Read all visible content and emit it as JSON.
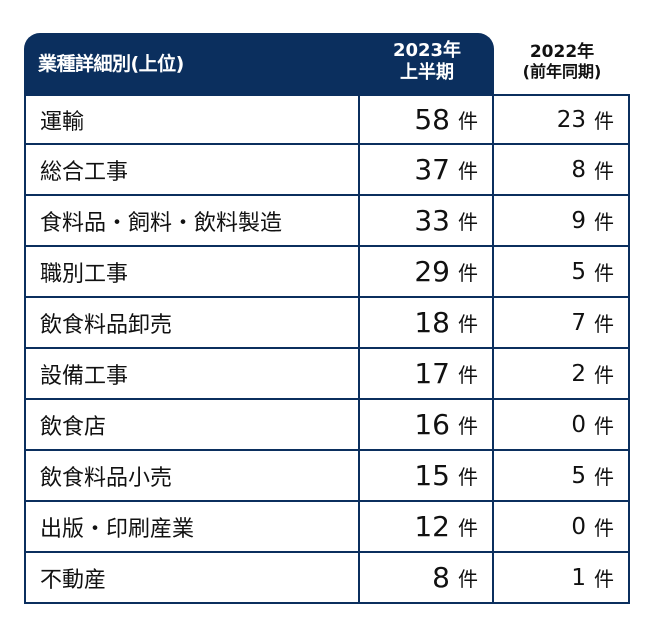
{
  "header": {
    "category": "業種詳細別(上位)",
    "col2_line1": "2023年",
    "col2_line2": "上半期",
    "col3_line1": "2022年",
    "col3_line2": "(前年同期)"
  },
  "unit": "件",
  "rows": [
    {
      "name": "運輸",
      "h1_2023": "58",
      "prev_2022": "23"
    },
    {
      "name": "総合工事",
      "h1_2023": "37",
      "prev_2022": "8"
    },
    {
      "name": "食料品・飼料・飲料製造",
      "h1_2023": "33",
      "prev_2022": "9"
    },
    {
      "name": "職別工事",
      "h1_2023": "29",
      "prev_2022": "5"
    },
    {
      "name": "飲食料品卸売",
      "h1_2023": "18",
      "prev_2022": "7"
    },
    {
      "name": "設備工事",
      "h1_2023": "17",
      "prev_2022": "2"
    },
    {
      "name": "飲食店",
      "h1_2023": "16",
      "prev_2022": "0"
    },
    {
      "name": "飲食料品小売",
      "h1_2023": "15",
      "prev_2022": "5"
    },
    {
      "name": "出版・印刷産業",
      "h1_2023": "12",
      "prev_2022": "0"
    },
    {
      "name": "不動産",
      "h1_2023": "8",
      "prev_2022": "1"
    }
  ],
  "colors": {
    "header": "#0b2f5e"
  }
}
